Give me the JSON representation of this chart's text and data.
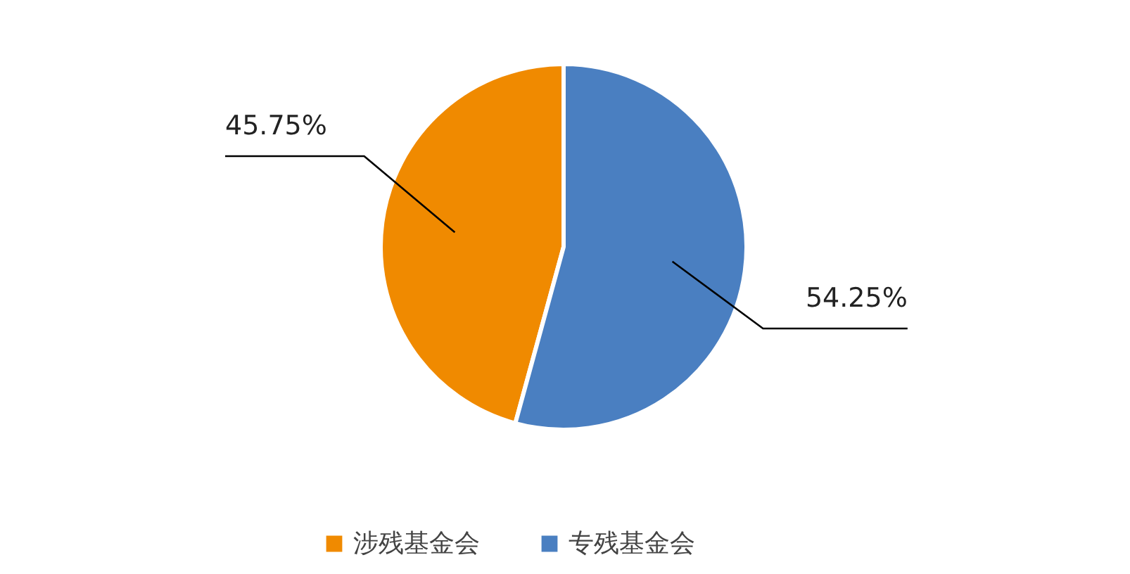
{
  "chart_data": {
    "type": "pie",
    "categories": [
      "涉残基金会",
      "专残基金会"
    ],
    "values": [
      45.75,
      54.25
    ],
    "colors": [
      "#f08a00",
      "#4a7fc1"
    ],
    "value_labels": [
      "45.75%",
      "54.25%"
    ],
    "legend": "bottom"
  }
}
